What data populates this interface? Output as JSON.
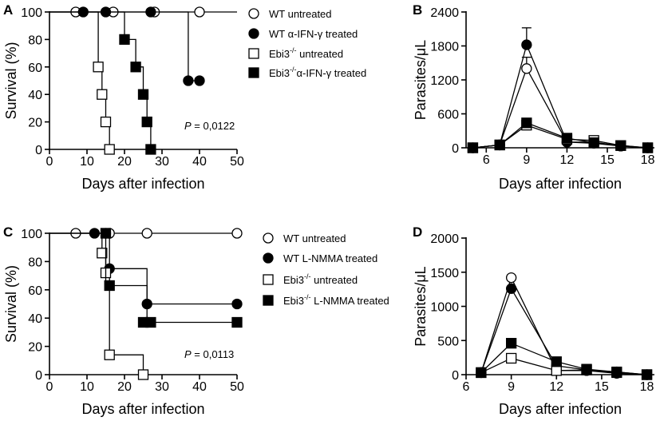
{
  "chart_data": [
    {
      "panel": "A",
      "type": "line",
      "subtype": "survival-step",
      "xlabel": "Days after infection",
      "ylabel": "Survival (%)",
      "xlim": [
        0,
        50
      ],
      "ylim": [
        0,
        100
      ],
      "xticks": [
        0,
        10,
        20,
        30,
        40,
        50
      ],
      "yticks": [
        0,
        20,
        40,
        60,
        80,
        100
      ],
      "annotation": {
        "prefix": "P",
        "text": " = 0,0122"
      },
      "series": [
        {
          "name": "WT untreated",
          "marker": "circle-open",
          "steps": [
            [
              0,
              100
            ],
            [
              50,
              100
            ]
          ],
          "points": [
            [
              7,
              100
            ],
            [
              17,
              100
            ],
            [
              28,
              100
            ],
            [
              40,
              100
            ]
          ]
        },
        {
          "name": "WT α-IFN-γ treated",
          "marker": "circle-filled",
          "steps": [
            [
              0,
              100
            ],
            [
              37,
              100
            ],
            [
              37,
              50
            ],
            [
              40,
              50
            ]
          ],
          "points": [
            [
              9,
              100
            ],
            [
              15,
              100
            ],
            [
              27,
              100
            ],
            [
              37,
              50
            ],
            [
              40,
              50
            ]
          ]
        },
        {
          "name": "Ebi3 untreated",
          "marker": "square-open",
          "steps": [
            [
              0,
              100
            ],
            [
              13,
              100
            ],
            [
              13,
              60
            ],
            [
              14,
              60
            ],
            [
              14,
              40
            ],
            [
              15,
              40
            ],
            [
              15,
              20
            ],
            [
              16,
              20
            ],
            [
              16,
              0
            ]
          ],
          "points": [
            [
              13,
              60
            ],
            [
              14,
              40
            ],
            [
              15,
              20
            ],
            [
              16,
              0
            ]
          ]
        },
        {
          "name": "Ebi3 α-IFN-γ treated",
          "marker": "square-filled",
          "steps": [
            [
              0,
              100
            ],
            [
              20,
              100
            ],
            [
              20,
              80
            ],
            [
              23,
              80
            ],
            [
              23,
              60
            ],
            [
              25,
              60
            ],
            [
              25,
              40
            ],
            [
              26,
              40
            ],
            [
              26,
              20
            ],
            [
              27,
              20
            ],
            [
              27,
              0
            ]
          ],
          "points": [
            [
              20,
              80
            ],
            [
              23,
              60
            ],
            [
              25,
              40
            ],
            [
              26,
              20
            ],
            [
              27,
              0
            ]
          ]
        }
      ]
    },
    {
      "panel": "B",
      "type": "line",
      "xlabel": "Days after infection",
      "ylabel": "Parasites/μL",
      "xlim": [
        4.5,
        18.5
      ],
      "ylim": [
        0,
        2400
      ],
      "xticks": [
        6,
        9,
        12,
        15,
        18
      ],
      "yticks": [
        0,
        600,
        1200,
        1800,
        2400
      ],
      "x": [
        5,
        7,
        9,
        12,
        14,
        16,
        18
      ],
      "series": [
        {
          "name": "WT untreated",
          "marker": "circle-open",
          "values": [
            0,
            50,
            1400,
            100,
            100,
            30,
            0
          ],
          "error": [
            null,
            null,
            200,
            null,
            null,
            null,
            null
          ]
        },
        {
          "name": "WT α-IFN-γ treated",
          "marker": "circle-filled",
          "values": [
            0,
            50,
            1820,
            100,
            80,
            30,
            0
          ],
          "error": [
            null,
            null,
            300,
            null,
            null,
            null,
            null
          ]
        },
        {
          "name": "Ebi3 untreated",
          "marker": "square-open",
          "values": [
            0,
            50,
            400,
            150,
            130,
            40,
            0
          ],
          "error": [
            null,
            null,
            null,
            null,
            null,
            null,
            null
          ]
        },
        {
          "name": "Ebi3 α-IFN-γ treated",
          "marker": "square-filled",
          "values": [
            0,
            50,
            440,
            170,
            90,
            40,
            0
          ],
          "error": [
            null,
            null,
            null,
            null,
            null,
            null,
            null
          ]
        }
      ]
    },
    {
      "panel": "C",
      "type": "line",
      "subtype": "survival-step",
      "xlabel": "Days after infection",
      "ylabel": "Survival (%)",
      "xlim": [
        0,
        50
      ],
      "ylim": [
        0,
        100
      ],
      "xticks": [
        0,
        10,
        20,
        30,
        40,
        50
      ],
      "yticks": [
        0,
        20,
        40,
        60,
        80,
        100
      ],
      "annotation": {
        "prefix": "P",
        "text": " = 0,0113"
      },
      "series": [
        {
          "name": "WT untreated",
          "marker": "circle-open",
          "steps": [
            [
              0,
              100
            ],
            [
              50,
              100
            ]
          ],
          "points": [
            [
              7,
              100
            ],
            [
              16,
              100
            ],
            [
              26,
              100
            ],
            [
              50,
              100
            ]
          ]
        },
        {
          "name": "WT L-NMMA treated",
          "marker": "circle-filled",
          "steps": [
            [
              0,
              100
            ],
            [
              16,
              100
            ],
            [
              16,
              75
            ],
            [
              26,
              75
            ],
            [
              26,
              50
            ],
            [
              50,
              50
            ]
          ],
          "points": [
            [
              12,
              100
            ],
            [
              15,
              100
            ],
            [
              16,
              75
            ],
            [
              26,
              50
            ],
            [
              50,
              50
            ]
          ]
        },
        {
          "name": "Ebi3 untreated",
          "marker": "square-open",
          "steps": [
            [
              0,
              100
            ],
            [
              14,
              100
            ],
            [
              14,
              86
            ],
            [
              15,
              86
            ],
            [
              15,
              72
            ],
            [
              16,
              72
            ],
            [
              16,
              14
            ],
            [
              25,
              14
            ],
            [
              25,
              0
            ]
          ],
          "points": [
            [
              14,
              86
            ],
            [
              15,
              72
            ],
            [
              16,
              14
            ],
            [
              25,
              0
            ]
          ]
        },
        {
          "name": "Ebi3 L-NMMA treated",
          "marker": "square-filled",
          "steps": [
            [
              0,
              100
            ],
            [
              15,
              100
            ],
            [
              15,
              63
            ],
            [
              26,
              63
            ],
            [
              26,
              37
            ],
            [
              50,
              37
            ]
          ],
          "points": [
            [
              15,
              100
            ],
            [
              16,
              63
            ],
            [
              25,
              37
            ],
            [
              27,
              37
            ],
            [
              50,
              37
            ]
          ]
        }
      ]
    },
    {
      "panel": "D",
      "type": "line",
      "xlabel": "Days after infection",
      "ylabel": "Parasites/μL",
      "xlim": [
        6,
        18.5
      ],
      "ylim": [
        0,
        2000
      ],
      "xticks": [
        6,
        9,
        12,
        15,
        18
      ],
      "yticks": [
        0,
        500,
        1000,
        1500,
        2000
      ],
      "x": [
        7,
        9,
        12,
        14,
        16,
        18
      ],
      "series": [
        {
          "name": "WT untreated",
          "marker": "circle-open",
          "values": [
            30,
            1420,
            60,
            60,
            20,
            0
          ]
        },
        {
          "name": "WT L-NMMA treated",
          "marker": "circle-filled",
          "values": [
            30,
            1260,
            130,
            70,
            40,
            0
          ]
        },
        {
          "name": "Ebi3 untreated",
          "marker": "square-open",
          "values": [
            30,
            240,
            60,
            70,
            30,
            0
          ]
        },
        {
          "name": "Ebi3 L-NMMA treated",
          "marker": "square-filled",
          "values": [
            30,
            460,
            190,
            80,
            40,
            0
          ]
        }
      ]
    }
  ],
  "legends": {
    "A": [
      {
        "marker": "circle-open",
        "prefix": "WT untreated",
        "sup": "",
        "suffix": ""
      },
      {
        "marker": "circle-filled",
        "prefix": "WT α-IFN-γ treated",
        "sup": "",
        "suffix": ""
      },
      {
        "marker": "square-open",
        "prefix": "Ebi3",
        "sup": "-/-",
        "suffix": "  untreated"
      },
      {
        "marker": "square-filled",
        "prefix": "Ebi3",
        "sup": "-/-",
        "suffix": "α-IFN-γ treated"
      }
    ],
    "C": [
      {
        "marker": "circle-open",
        "prefix": "WT untreated",
        "sup": "",
        "suffix": ""
      },
      {
        "marker": "circle-filled",
        "prefix": "WT L-NMMA treated",
        "sup": "",
        "suffix": ""
      },
      {
        "marker": "square-open",
        "prefix": "Ebi3",
        "sup": "-/-",
        "suffix": " untreated"
      },
      {
        "marker": "square-filled",
        "prefix": "Ebi3",
        "sup": "-/-",
        "suffix": " L-NMMA treated"
      }
    ]
  },
  "colors": {
    "ink": "#000000",
    "background": "#ffffff"
  }
}
